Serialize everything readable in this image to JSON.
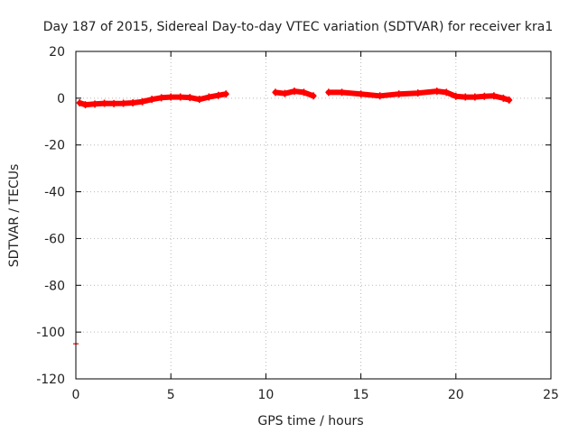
{
  "chart_data": {
    "type": "scatter",
    "title": "Day 187 of 2015, Sidereal Day-to-day VTEC variation (SDTVAR) for receiver kra1",
    "xlabel": "GPS time / hours",
    "ylabel": "SDTVAR / TECUs",
    "xlim": [
      0,
      25
    ],
    "ylim": [
      -120,
      20
    ],
    "xticks": [
      0,
      5,
      10,
      15,
      20,
      25
    ],
    "xtick_labels": [
      "0",
      "5",
      "10",
      "15",
      "20",
      "25"
    ],
    "yticks": [
      20,
      0,
      -20,
      -40,
      -60,
      -80,
      -100,
      -120
    ],
    "ytick_labels": [
      "20",
      "0",
      "-20",
      "-40",
      "-60",
      "-80",
      "-100",
      "-120"
    ],
    "grid": true,
    "series_color": "#ff0000",
    "series": [
      {
        "name": "segment-1",
        "x": [
          0.2,
          0.5,
          1.0,
          1.5,
          2.0,
          2.5,
          3.0,
          3.5,
          4.0,
          4.5,
          5.0,
          5.5,
          6.0,
          6.5,
          7.0,
          7.5,
          7.9
        ],
        "y": [
          -2.0,
          -2.8,
          -2.5,
          -2.2,
          -2.3,
          -2.2,
          -2.0,
          -1.5,
          -0.5,
          0.2,
          0.5,
          0.5,
          0.3,
          -0.5,
          0.5,
          1.2,
          1.8
        ]
      },
      {
        "name": "segment-2",
        "x": [
          10.5,
          11.0,
          11.5,
          12.0,
          12.5
        ],
        "y": [
          2.5,
          2.0,
          3.0,
          2.5,
          1.0
        ]
      },
      {
        "name": "segment-3",
        "x": [
          13.3,
          14.0,
          15.0,
          16.0,
          17.0,
          18.0,
          19.0,
          19.5,
          20.0,
          20.5,
          21.0,
          21.5,
          22.0,
          22.5,
          22.8
        ],
        "y": [
          2.5,
          2.5,
          1.8,
          1.0,
          1.8,
          2.2,
          3.0,
          2.5,
          0.8,
          0.5,
          0.5,
          0.8,
          1.0,
          0.0,
          -0.8
        ]
      },
      {
        "name": "outlier",
        "x": [
          0.0
        ],
        "y": [
          -105.0
        ]
      }
    ]
  }
}
